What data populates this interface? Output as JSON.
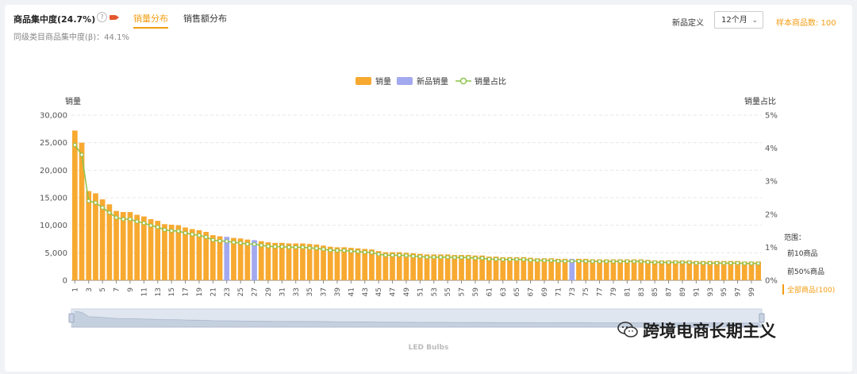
{
  "header": {
    "title": "商品集中度(24.7%)",
    "help_icon": "help-circle-icon",
    "video_icon": "video-icon",
    "tabs": [
      {
        "label": "销量分布",
        "active": true
      },
      {
        "label": "销售额分布",
        "active": false
      }
    ],
    "subtitle": "同级类目商品集中度(β)：44.1%",
    "new_def_label": "新品定义",
    "period_value": "12个月",
    "sample_count": "样本商品数: 100",
    "accent_color": "#f39c12"
  },
  "scope": {
    "label": "范围：",
    "options": [
      "前10商品",
      "前50%商品",
      "全部商品(100)"
    ],
    "active_index": 2
  },
  "footer": {
    "brand": "LED Bulbs"
  },
  "watermark": "跨境电商长期主义",
  "chart_data": {
    "type": "bar",
    "legend": [
      {
        "name": "销量",
        "color": "#f7a930"
      },
      {
        "name": "新品销量",
        "color": "#a3a9ef"
      },
      {
        "name": "销量占比",
        "color": "#8bc34a"
      }
    ],
    "ylabel_left": "销量",
    "ylabel_right": "销量占比",
    "yticks_left": [
      "0",
      "5,000",
      "10,000",
      "15,000",
      "20,000",
      "25,000",
      "30,000"
    ],
    "yticks_right": [
      "0%",
      "1%",
      "2%",
      "3%",
      "4%",
      "5%"
    ],
    "ylim_left": [
      0,
      30000
    ],
    "ylim_right": [
      0,
      5
    ],
    "x": [
      1,
      2,
      3,
      4,
      5,
      6,
      7,
      8,
      9,
      10,
      11,
      12,
      13,
      14,
      15,
      16,
      17,
      18,
      19,
      20,
      21,
      22,
      23,
      24,
      25,
      26,
      27,
      28,
      29,
      30,
      31,
      32,
      33,
      34,
      35,
      36,
      37,
      38,
      39,
      40,
      41,
      42,
      43,
      44,
      45,
      46,
      47,
      48,
      49,
      50,
      51,
      52,
      53,
      54,
      55,
      56,
      57,
      58,
      59,
      60,
      61,
      62,
      63,
      64,
      65,
      66,
      67,
      68,
      69,
      70,
      71,
      72,
      73,
      74,
      75,
      76,
      77,
      78,
      79,
      80,
      81,
      82,
      83,
      84,
      85,
      86,
      87,
      88,
      89,
      90,
      91,
      92,
      93,
      94,
      95,
      96,
      97,
      98,
      99,
      100
    ],
    "xtick_labels": [
      "1",
      "3",
      "5",
      "7",
      "9",
      "11",
      "13",
      "15",
      "17",
      "19",
      "21",
      "23",
      "25",
      "27",
      "29",
      "31",
      "33",
      "35",
      "37",
      "39",
      "41",
      "43",
      "45",
      "47",
      "49",
      "51",
      "53",
      "55",
      "57",
      "59",
      "61",
      "63",
      "65",
      "67",
      "69",
      "71",
      "73",
      "75",
      "77",
      "79",
      "81",
      "83",
      "85",
      "87",
      "89",
      "91",
      "93",
      "95",
      "97",
      "99"
    ],
    "new_product_indices": [
      23,
      27,
      73
    ],
    "series": [
      {
        "name": "销量",
        "values": [
          27200,
          25000,
          16200,
          15800,
          14700,
          13800,
          12600,
          12400,
          12400,
          11900,
          11600,
          11100,
          10800,
          10200,
          10100,
          10000,
          9600,
          9300,
          9100,
          8800,
          8200,
          8000,
          7900,
          7700,
          7600,
          7400,
          7300,
          7100,
          6900,
          6800,
          6800,
          6700,
          6700,
          6700,
          6600,
          6500,
          6300,
          6100,
          6000,
          6000,
          5900,
          5800,
          5700,
          5600,
          5300,
          5100,
          5100,
          5100,
          5000,
          4900,
          4800,
          4700,
          4700,
          4700,
          4700,
          4600,
          4600,
          4600,
          4500,
          4500,
          4300,
          4300,
          4200,
          4200,
          4200,
          4200,
          4100,
          4000,
          4000,
          4000,
          3900,
          3900,
          3900,
          3900,
          3900,
          3800,
          3800,
          3800,
          3800,
          3800,
          3800,
          3800,
          3800,
          3700,
          3600,
          3600,
          3600,
          3600,
          3600,
          3600,
          3500,
          3500,
          3500,
          3500,
          3500,
          3500,
          3500,
          3400,
          3400,
          3400
        ]
      },
      {
        "name": "销量占比",
        "values": [
          4.1,
          3.8,
          2.4,
          2.35,
          2.2,
          2.05,
          1.9,
          1.85,
          1.85,
          1.78,
          1.73,
          1.66,
          1.61,
          1.53,
          1.5,
          1.49,
          1.43,
          1.39,
          1.36,
          1.31,
          1.22,
          1.19,
          1.18,
          1.15,
          1.13,
          1.1,
          1.09,
          1.06,
          1.03,
          1.02,
          1.02,
          1.0,
          1.0,
          1.0,
          0.98,
          0.97,
          0.94,
          0.91,
          0.9,
          0.9,
          0.88,
          0.87,
          0.85,
          0.84,
          0.79,
          0.76,
          0.76,
          0.76,
          0.75,
          0.73,
          0.72,
          0.7,
          0.7,
          0.7,
          0.7,
          0.69,
          0.69,
          0.69,
          0.67,
          0.67,
          0.64,
          0.64,
          0.63,
          0.63,
          0.63,
          0.63,
          0.61,
          0.6,
          0.6,
          0.6,
          0.58,
          0.58,
          0.58,
          0.58,
          0.58,
          0.57,
          0.57,
          0.57,
          0.57,
          0.57,
          0.57,
          0.57,
          0.57,
          0.55,
          0.54,
          0.54,
          0.54,
          0.54,
          0.54,
          0.54,
          0.52,
          0.52,
          0.52,
          0.52,
          0.52,
          0.52,
          0.52,
          0.51,
          0.51,
          0.51
        ]
      }
    ],
    "grid": true,
    "legend_position": "top-center",
    "slider": true
  }
}
